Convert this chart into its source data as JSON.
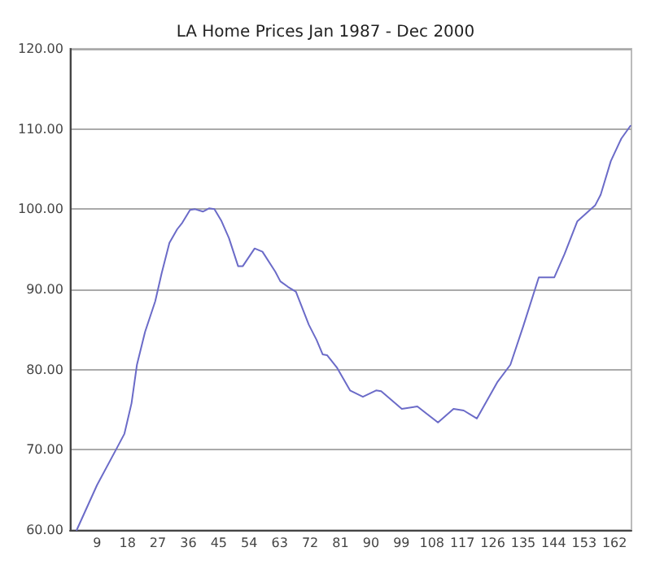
{
  "chart_data": {
    "type": "line",
    "title": "LA Home Prices Jan 1987 - Dec 2000",
    "x": [
      3,
      9,
      15.1,
      17.1,
      19.2,
      20.8,
      23.2,
      26.2,
      28.1,
      30.4,
      32.7,
      34.2,
      36.5,
      38,
      40.3,
      42.1,
      43.7,
      45.7,
      48,
      50.7,
      52.1,
      55.6,
      57.9,
      61.7,
      63.2,
      65.5,
      67.8,
      71.6,
      73.9,
      75.7,
      77,
      80,
      83.8,
      87.6,
      91.5,
      93,
      99.1,
      103.7,
      109.8,
      114.4,
      117.4,
      121.3,
      127.3,
      131.2,
      135,
      139.6,
      144.2,
      147.2,
      151,
      156.3,
      157.9,
      160.9,
      164,
      166.7
    ],
    "series": [
      {
        "color": "#6b6bc8",
        "values": [
          60,
          65.6,
          70.4,
          72,
          75.8,
          80.6,
          84.7,
          88.5,
          92,
          95.8,
          97.5,
          98.3,
          99.9,
          100,
          99.7,
          100.1,
          100,
          98.6,
          96.4,
          92.9,
          92.9,
          95.1,
          94.7,
          92.2,
          91,
          90.3,
          89.7,
          85.6,
          83.7,
          81.9,
          81.8,
          80.2,
          77.4,
          76.6,
          77.4,
          77.3,
          75.1,
          75.4,
          73.4,
          75.1,
          74.9,
          73.9,
          78.4,
          80.6,
          85.4,
          91.5,
          91.5,
          94.4,
          98.5,
          100.5,
          101.8,
          106,
          108.8,
          110.4
        ]
      }
    ],
    "xlim": [
      1,
      167
    ],
    "xticks": [
      9,
      18,
      27,
      36,
      45,
      54,
      63,
      72,
      81,
      90,
      99,
      108,
      117,
      126,
      135,
      144,
      153,
      162
    ],
    "ylim": [
      60,
      120
    ],
    "yticks": [
      {
        "value": 60,
        "label": "60.00"
      },
      {
        "value": 70,
        "label": "70.00"
      },
      {
        "value": 80,
        "label": "80.00"
      },
      {
        "value": 90,
        "label": "90.00"
      },
      {
        "value": 100,
        "label": "100.00"
      },
      {
        "value": 110,
        "label": "110.00"
      },
      {
        "value": 120,
        "label": "120.00"
      }
    ],
    "grid": "y",
    "marker": "none",
    "line_style": "solid"
  }
}
